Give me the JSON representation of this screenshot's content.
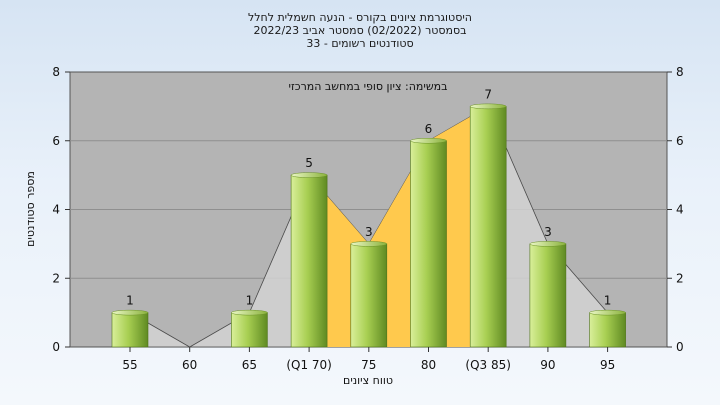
{
  "chart_data": {
    "type": "bar",
    "title_lines": [
      "היסטוגרמת ציונים בקורס - הנעה חשמלית לחלל",
      "בסמסטר (02/2022) סמסטר אביב 2022/23",
      "סטודנטים רשומים - 33"
    ],
    "subtitle": "במשימה: ציון סופי במחשב המרכזי",
    "xlabel": "טווח ציונים",
    "ylabel": "מספר סטודנטים",
    "categories": [
      "55",
      "60",
      "65",
      "(Q1 70)",
      "75",
      "80",
      "(Q3 85)",
      "90",
      "95"
    ],
    "values": [
      1,
      0,
      1,
      5,
      3,
      6,
      7,
      3,
      1
    ],
    "data_labels": [
      "1",
      "",
      "1",
      "5",
      "3",
      "6",
      "7",
      "3",
      "1"
    ],
    "ylim": [
      0,
      8
    ],
    "yticks": [
      0,
      2,
      4,
      6,
      8
    ],
    "grid": true,
    "interquartile_band": {
      "from": "(Q1 70)",
      "to": "(Q3 85)",
      "color": "#ffc94d"
    },
    "colors": {
      "plot_bg": "#b4b4b4",
      "bar_light": "#d9ef9a",
      "bar_dark": "#6f9a2a",
      "band": "#ffc94d",
      "distribution_fill": "#d2d2d2"
    }
  }
}
